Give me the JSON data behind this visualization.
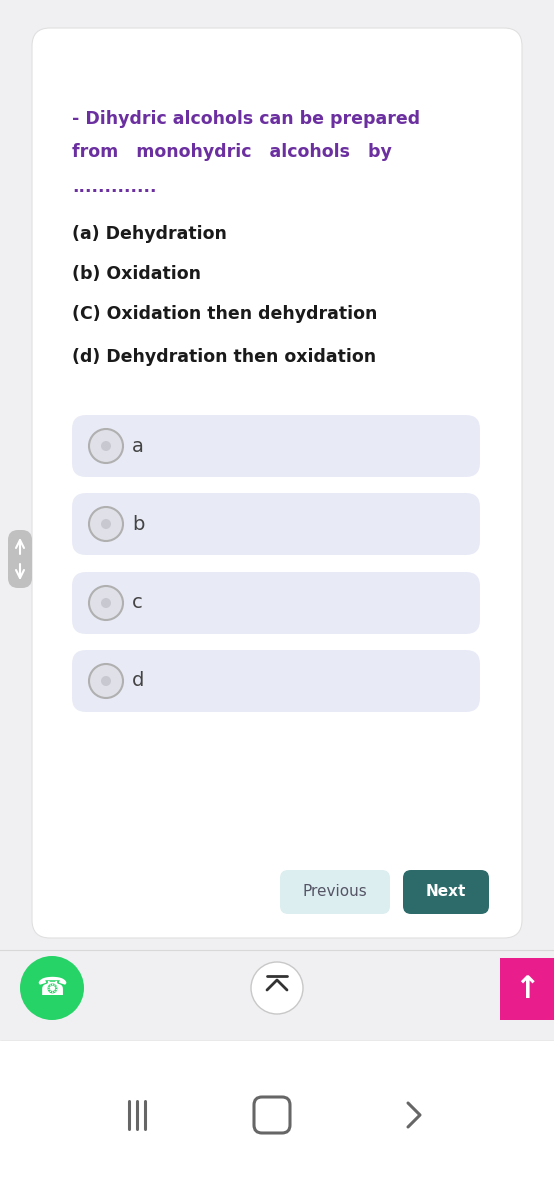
{
  "bg_color": "#f0f0f2",
  "card_bg": "#ffffff",
  "card_border": "#e0e0e0",
  "question_color": "#6b2fa0",
  "question_text_line1": "- Dihydric alcohols can be prepared",
  "question_text_line2": "from   monohydric   alcohols   by",
  "question_dots": ".............",
  "options": [
    "(a) Dehydration",
    "(b) Oxidation",
    "(C) Oxidation then dehydration",
    "(d) Dehydration then oxidation"
  ],
  "option_labels": [
    "a",
    "b",
    "c",
    "d"
  ],
  "option_box_color": "#e8eaf6",
  "option_text_color": "#444444",
  "radio_outer_color": "#b0b0b0",
  "radio_inner_color": "#e0e0e8",
  "prev_btn_bg": "#ddeef0",
  "prev_btn_text": "Previous",
  "prev_btn_color": "#555566",
  "next_btn_bg": "#2d6b6b",
  "next_btn_text": "Next",
  "next_btn_text_color": "#ffffff",
  "whatsapp_color": "#25d366",
  "up_arrow_btn_color": "#e91e8c",
  "side_pill_color": "#c0c0c0",
  "bottom_bg": "#ffffff",
  "nav_icon_color": "#666666"
}
